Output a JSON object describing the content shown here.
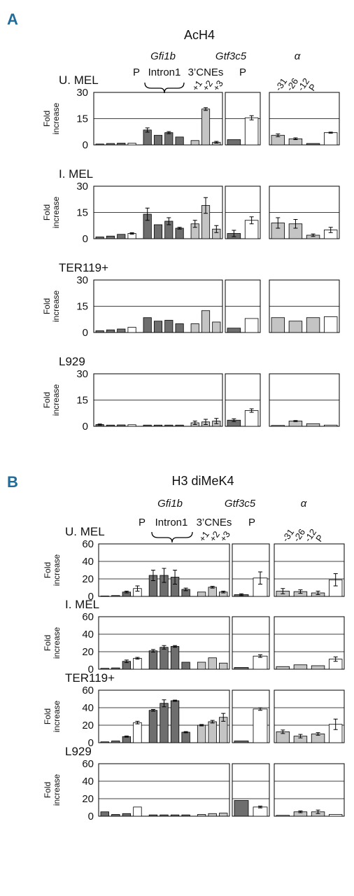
{
  "chart_data": [
    {
      "panel": "A",
      "title": "AcH4",
      "type": "bar",
      "gene_labels": [
        "Gfi1b",
        "Gtf3c5",
        "α"
      ],
      "region_labels": [
        "P",
        "Intron1",
        "3’CNEs",
        "P"
      ],
      "cne_labels": [
        "+1",
        "+2",
        "+3"
      ],
      "alpha_labels": [
        "-31",
        "-26",
        "-12",
        "P"
      ],
      "ylabel": "Fold\nincrease",
      "yticks": [
        "0",
        "15",
        "30"
      ],
      "ylim": [
        0,
        30
      ],
      "gridlines": [
        15
      ],
      "colors": {
        "dark": "#6e6e6e",
        "light": "#c4c4c4",
        "white": "#ffffff"
      },
      "rows": [
        {
          "cell": "U. MEL",
          "groups": [
            {
              "bars": [
                {
                  "v": 0.5,
                  "c": "dark"
                },
                {
                  "v": 0.8,
                  "c": "dark"
                },
                {
                  "v": 1.0,
                  "c": "dark"
                },
                {
                  "v": 1.0,
                  "c": "white"
                },
                {
                  "v": 8.5,
                  "c": "dark",
                  "e": 1.2
                },
                {
                  "v": 5.5,
                  "c": "dark"
                },
                {
                  "v": 7.0,
                  "c": "dark",
                  "e": 0.6
                },
                {
                  "v": 4.5,
                  "c": "dark"
                },
                {
                  "v": 2.5,
                  "c": "light"
                },
                {
                  "v": 20.5,
                  "c": "light",
                  "e": 0.8
                },
                {
                  "v": 1.5,
                  "c": "light",
                  "e": 0.5
                }
              ]
            },
            {
              "bars": [
                {
                  "v": 3.0,
                  "c": "dark"
                },
                {
                  "v": 15.5,
                  "c": "white",
                  "e": 1.2
                }
              ]
            },
            {
              "bars": [
                {
                  "v": 5.5,
                  "c": "light",
                  "e": 0.8
                },
                {
                  "v": 3.5,
                  "c": "light",
                  "e": 0.5
                },
                {
                  "v": 0.8,
                  "c": "dark"
                },
                {
                  "v": 7.0,
                  "c": "white",
                  "e": 0.3
                }
              ]
            }
          ]
        },
        {
          "cell": "I. MEL",
          "groups": [
            {
              "bars": [
                {
                  "v": 1.0,
                  "c": "dark"
                },
                {
                  "v": 1.5,
                  "c": "dark"
                },
                {
                  "v": 2.5,
                  "c": "dark"
                },
                {
                  "v": 3.0,
                  "c": "white",
                  "e": 0.4
                },
                {
                  "v": 14.0,
                  "c": "dark",
                  "e": 3.5
                },
                {
                  "v": 8.0,
                  "c": "dark"
                },
                {
                  "v": 10.0,
                  "c": "dark",
                  "e": 2.0
                },
                {
                  "v": 6.0,
                  "c": "dark",
                  "e": 0.5
                },
                {
                  "v": 8.5,
                  "c": "light",
                  "e": 2.0
                },
                {
                  "v": 19.0,
                  "c": "light",
                  "e": 4.5
                },
                {
                  "v": 5.5,
                  "c": "light",
                  "e": 2.0
                }
              ]
            },
            {
              "bars": [
                {
                  "v": 3.0,
                  "c": "dark",
                  "e": 1.8
                },
                {
                  "v": 10.5,
                  "c": "white",
                  "e": 2.0
                }
              ]
            },
            {
              "bars": [
                {
                  "v": 9.0,
                  "c": "light",
                  "e": 3.0
                },
                {
                  "v": 8.5,
                  "c": "light",
                  "e": 2.5
                },
                {
                  "v": 2.0,
                  "c": "light",
                  "e": 0.7
                },
                {
                  "v": 5.0,
                  "c": "white",
                  "e": 1.5
                }
              ]
            }
          ]
        },
        {
          "cell": "TER119+",
          "groups": [
            {
              "bars": [
                {
                  "v": 1.0,
                  "c": "dark"
                },
                {
                  "v": 1.5,
                  "c": "dark"
                },
                {
                  "v": 2.0,
                  "c": "dark"
                },
                {
                  "v": 3.0,
                  "c": "white"
                },
                {
                  "v": 8.5,
                  "c": "dark"
                },
                {
                  "v": 6.5,
                  "c": "dark"
                },
                {
                  "v": 7.0,
                  "c": "dark"
                },
                {
                  "v": 5.0,
                  "c": "dark"
                },
                {
                  "v": 5.0,
                  "c": "light"
                },
                {
                  "v": 12.5,
                  "c": "light"
                },
                {
                  "v": 6.0,
                  "c": "light"
                }
              ]
            },
            {
              "bars": [
                {
                  "v": 2.5,
                  "c": "dark"
                },
                {
                  "v": 8.0,
                  "c": "white"
                }
              ]
            },
            {
              "bars": [
                {
                  "v": 8.5,
                  "c": "light"
                },
                {
                  "v": 6.5,
                  "c": "light"
                },
                {
                  "v": 8.5,
                  "c": "light"
                },
                {
                  "v": 9.0,
                  "c": "white"
                }
              ]
            }
          ]
        },
        {
          "cell": "L929",
          "groups": [
            {
              "bars": [
                {
                  "v": 1.0,
                  "c": "dark",
                  "e": 0.3
                },
                {
                  "v": 0.7,
                  "c": "dark"
                },
                {
                  "v": 0.8,
                  "c": "dark"
                },
                {
                  "v": 0.9,
                  "c": "white"
                },
                {
                  "v": 0.7,
                  "c": "dark"
                },
                {
                  "v": 0.7,
                  "c": "dark"
                },
                {
                  "v": 0.7,
                  "c": "dark"
                },
                {
                  "v": 0.7,
                  "c": "dark"
                },
                {
                  "v": 2.0,
                  "c": "light",
                  "e": 1.0
                },
                {
                  "v": 2.5,
                  "c": "light",
                  "e": 1.5
                },
                {
                  "v": 3.0,
                  "c": "light",
                  "e": 1.5
                }
              ]
            },
            {
              "bars": [
                {
                  "v": 3.5,
                  "c": "dark",
                  "e": 0.8
                },
                {
                  "v": 9.0,
                  "c": "white",
                  "e": 1.0
                }
              ]
            },
            {
              "bars": [
                {
                  "v": 0.5,
                  "c": "light"
                },
                {
                  "v": 3.0,
                  "c": "light",
                  "e": 0.3
                },
                {
                  "v": 1.5,
                  "c": "light"
                },
                {
                  "v": 0.7,
                  "c": "white"
                }
              ]
            }
          ]
        }
      ]
    },
    {
      "panel": "B",
      "title": "H3 diMeK4",
      "type": "bar",
      "gene_labels": [
        "Gfi1b",
        "Gtf3c5",
        "α"
      ],
      "region_labels": [
        "P",
        "Intron1",
        "3’CNEs",
        "P"
      ],
      "cne_labels": [
        "+1",
        "+2",
        "+3"
      ],
      "alpha_labels": [
        "-31",
        "-26",
        "-12",
        "P"
      ],
      "ylabel": "Fold\nincrease",
      "yticks": [
        "0",
        "20",
        "40",
        "60"
      ],
      "ylim": [
        0,
        60
      ],
      "gridlines": [
        20,
        40
      ],
      "colors": {
        "dark": "#6e6e6e",
        "light": "#c4c4c4",
        "white": "#ffffff"
      },
      "rows": [
        {
          "cell": "U. MEL",
          "groups": [
            {
              "bars": [
                {
                  "v": 0.5,
                  "c": "dark"
                },
                {
                  "v": 1.0,
                  "c": "dark"
                },
                {
                  "v": 5.0,
                  "c": "dark",
                  "e": 1.0
                },
                {
                  "v": 9.0,
                  "c": "white",
                  "e": 3.0
                },
                {
                  "v": 24.0,
                  "c": "dark",
                  "e": 6.0
                },
                {
                  "v": 24.0,
                  "c": "dark",
                  "e": 8.0
                },
                {
                  "v": 22.0,
                  "c": "dark",
                  "e": 8.0
                },
                {
                  "v": 8.0,
                  "c": "dark",
                  "e": 1.5
                },
                {
                  "v": 5.0,
                  "c": "light"
                },
                {
                  "v": 10.5,
                  "c": "light",
                  "e": 1.0
                },
                {
                  "v": 5.0,
                  "c": "light",
                  "e": 1.0
                }
              ]
            },
            {
              "bars": [
                {
                  "v": 2.0,
                  "c": "dark",
                  "e": 1.0
                },
                {
                  "v": 21.0,
                  "c": "white",
                  "e": 7.0
                }
              ]
            },
            {
              "bars": [
                {
                  "v": 6.0,
                  "c": "light",
                  "e": 3.0
                },
                {
                  "v": 5.5,
                  "c": "light",
                  "e": 2.0
                },
                {
                  "v": 4.0,
                  "c": "light",
                  "e": 2.0
                },
                {
                  "v": 19.0,
                  "c": "white",
                  "e": 7.0
                }
              ]
            }
          ]
        },
        {
          "cell": "I. MEL",
          "groups": [
            {
              "bars": [
                {
                  "v": 1.0,
                  "c": "dark"
                },
                {
                  "v": 1.5,
                  "c": "dark"
                },
                {
                  "v": 9.0,
                  "c": "dark",
                  "e": 1.5
                },
                {
                  "v": 12.5,
                  "c": "white",
                  "e": 1.0
                },
                {
                  "v": 21.0,
                  "c": "dark",
                  "e": 1.5
                },
                {
                  "v": 25.0,
                  "c": "dark",
                  "e": 2.0
                },
                {
                  "v": 26.0,
                  "c": "dark",
                  "e": 1.0
                },
                {
                  "v": 8.0,
                  "c": "dark"
                },
                {
                  "v": 8.0,
                  "c": "light"
                },
                {
                  "v": 13.0,
                  "c": "light"
                },
                {
                  "v": 7.0,
                  "c": "light"
                }
              ]
            },
            {
              "bars": [
                {
                  "v": 2.0,
                  "c": "dark"
                },
                {
                  "v": 15.0,
                  "c": "white",
                  "e": 1.5
                }
              ]
            },
            {
              "bars": [
                {
                  "v": 3.0,
                  "c": "light"
                },
                {
                  "v": 5.0,
                  "c": "light"
                },
                {
                  "v": 4.0,
                  "c": "light"
                },
                {
                  "v": 11.5,
                  "c": "white",
                  "e": 2.5
                }
              ]
            }
          ]
        },
        {
          "cell": "TER119+",
          "groups": [
            {
              "bars": [
                {
                  "v": 1.0,
                  "c": "dark"
                },
                {
                  "v": 2.0,
                  "c": "dark"
                },
                {
                  "v": 7.0,
                  "c": "dark",
                  "e": 0.7
                },
                {
                  "v": 23.0,
                  "c": "white",
                  "e": 1.5
                },
                {
                  "v": 37.0,
                  "c": "dark",
                  "e": 1.0
                },
                {
                  "v": 45.0,
                  "c": "dark",
                  "e": 4.0
                },
                {
                  "v": 48.0,
                  "c": "dark",
                  "e": 0.7
                },
                {
                  "v": 12.0,
                  "c": "dark",
                  "e": 0.7
                },
                {
                  "v": 20.0,
                  "c": "light",
                  "e": 0.8
                },
                {
                  "v": 24.0,
                  "c": "light",
                  "e": 1.5
                },
                {
                  "v": 29.0,
                  "c": "light",
                  "e": 4.5
                }
              ]
            },
            {
              "bars": [
                {
                  "v": 2.0,
                  "c": "dark"
                },
                {
                  "v": 38.5,
                  "c": "white",
                  "e": 1.5
                }
              ]
            },
            {
              "bars": [
                {
                  "v": 12.5,
                  "c": "light",
                  "e": 2.0
                },
                {
                  "v": 7.5,
                  "c": "light",
                  "e": 2.0
                },
                {
                  "v": 10.0,
                  "c": "light",
                  "e": 1.5
                },
                {
                  "v": 21.0,
                  "c": "white",
                  "e": 6.0
                }
              ]
            }
          ]
        },
        {
          "cell": "L929",
          "groups": [
            {
              "bars": [
                {
                  "v": 5.0,
                  "c": "dark"
                },
                {
                  "v": 2.0,
                  "c": "dark"
                },
                {
                  "v": 3.0,
                  "c": "dark"
                },
                {
                  "v": 10.5,
                  "c": "white"
                },
                {
                  "v": 1.5,
                  "c": "dark"
                },
                {
                  "v": 1.5,
                  "c": "dark"
                },
                {
                  "v": 1.5,
                  "c": "dark"
                },
                {
                  "v": 1.5,
                  "c": "dark"
                },
                {
                  "v": 2.0,
                  "c": "light"
                },
                {
                  "v": 3.0,
                  "c": "light"
                },
                {
                  "v": 3.5,
                  "c": "light"
                }
              ]
            },
            {
              "bars": [
                {
                  "v": 18.0,
                  "c": "dark"
                },
                {
                  "v": 10.5,
                  "c": "white",
                  "e": 1.0
                }
              ]
            },
            {
              "bars": [
                {
                  "v": 1.0,
                  "c": "light"
                },
                {
                  "v": 5.0,
                  "c": "light",
                  "e": 1.0
                },
                {
                  "v": 5.0,
                  "c": "light",
                  "e": 2.0
                },
                {
                  "v": 2.0,
                  "c": "white"
                }
              ]
            }
          ]
        }
      ]
    }
  ]
}
